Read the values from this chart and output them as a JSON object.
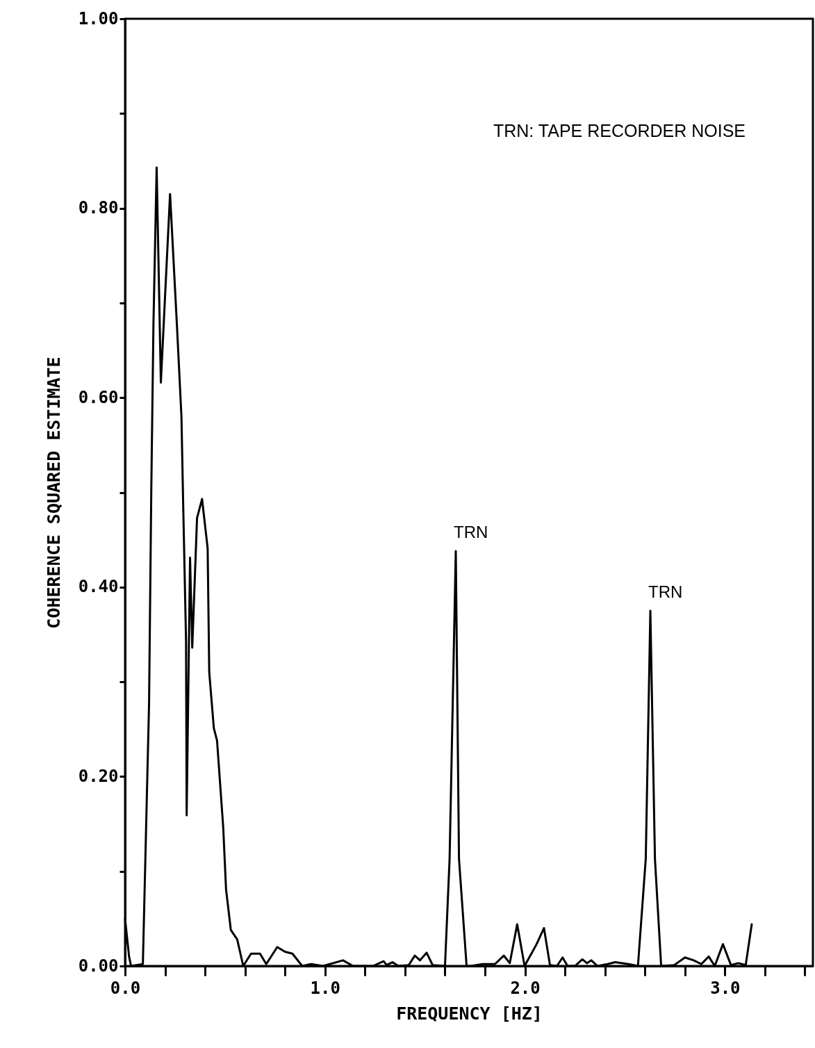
{
  "chart_data": {
    "type": "line",
    "xlabel": "FREQUENCY [HZ]",
    "ylabel": "COHERENCE SQUARED ESTIMATE",
    "annotations": [
      "TRN: TAPE RECORDER NOISE",
      {
        "text": "TRN",
        "x": 1.654,
        "y": 0.438
      },
      {
        "text": "TRN",
        "x": 2.627,
        "y": 0.375
      }
    ],
    "xlim": [
      0,
      3.44
    ],
    "xticks": [
      {
        "value": 0,
        "label": "0.0"
      },
      {
        "value": 0.2,
        "label": null
      },
      {
        "value": 0.4,
        "label": null
      },
      {
        "value": 0.6,
        "label": null
      },
      {
        "value": 0.8,
        "label": null
      },
      {
        "value": 1,
        "label": "1.0"
      },
      {
        "value": 1.2,
        "label": null
      },
      {
        "value": 1.4,
        "label": null
      },
      {
        "value": 1.6,
        "label": null
      },
      {
        "value": 1.8,
        "label": null
      },
      {
        "value": 2,
        "label": "2.0"
      },
      {
        "value": 2.2,
        "label": null
      },
      {
        "value": 2.4,
        "label": null
      },
      {
        "value": 2.6,
        "label": null
      },
      {
        "value": 2.8,
        "label": null
      },
      {
        "value": 3,
        "label": "3.0"
      },
      {
        "value": 3.2,
        "label": null
      },
      {
        "value": 3.4,
        "label": null
      }
    ],
    "ylim": [
      0,
      1
    ],
    "yticks": [
      {
        "value": 0,
        "label": "0.00"
      },
      {
        "value": 0.1,
        "label": null
      },
      {
        "value": 0.2,
        "label": "0.20"
      },
      {
        "value": 0.3,
        "label": null
      },
      {
        "value": 0.4,
        "label": "0.40"
      },
      {
        "value": 0.5,
        "label": null
      },
      {
        "value": 0.6,
        "label": "0.60"
      },
      {
        "value": 0.7,
        "label": null
      },
      {
        "value": 0.8,
        "label": "0.80"
      },
      {
        "value": 0.9,
        "label": null
      },
      {
        "value": 1,
        "label": "1.00"
      }
    ],
    "grid": false,
    "line_style": "solid",
    "marker": "none",
    "series": [
      {
        "color": "#000000",
        "x": [
          0,
          0.02,
          0.03,
          0.089,
          0.12,
          0.131,
          0.142,
          0.158,
          0.179,
          0.225,
          0.259,
          0.282,
          0.29,
          0.305,
          0.308,
          0.325,
          0.336,
          0.36,
          0.385,
          0.413,
          0.421,
          0.444,
          0.46,
          0.491,
          0.505,
          0.529,
          0.561,
          0.591,
          0.63,
          0.675,
          0.706,
          0.761,
          0.8,
          0.837,
          0.886,
          0.93,
          0.99,
          1.09,
          1.14,
          1.24,
          1.293,
          1.308,
          1.337,
          1.367,
          1.419,
          1.449,
          1.475,
          1.508,
          1.538,
          1.6,
          1.623,
          1.654,
          1.67,
          1.708,
          1.73,
          1.789,
          1.85,
          1.894,
          1.924,
          1.961,
          1.998,
          2.058,
          2.095,
          2.125,
          2.16,
          2.188,
          2.213,
          2.25,
          2.287,
          2.31,
          2.332,
          2.362,
          2.414,
          2.451,
          2.517,
          2.565,
          2.604,
          2.627,
          2.65,
          2.681,
          2.747,
          2.8,
          2.844,
          2.882,
          2.919,
          2.949,
          2.99,
          3.03,
          3.067,
          3.104,
          3.134
        ],
        "values": [
          0.05,
          0.01,
          0,
          0.002,
          0.277,
          0.5,
          0.678,
          0.843,
          0.616,
          0.815,
          0.678,
          0.58,
          0.494,
          0.343,
          0.159,
          0.431,
          0.336,
          0.473,
          0.493,
          0.441,
          0.31,
          0.251,
          0.238,
          0.146,
          0.081,
          0.038,
          0.028,
          0,
          0.013,
          0.013,
          0.002,
          0.02,
          0.015,
          0.013,
          0,
          0.002,
          0,
          0.006,
          0,
          0,
          0.005,
          0.001,
          0.004,
          0,
          0.001,
          0.011,
          0.006,
          0.014,
          0.001,
          0,
          0.113,
          0.438,
          0.113,
          0,
          0,
          0.002,
          0.002,
          0.011,
          0.003,
          0.044,
          0,
          0.023,
          0.04,
          0.001,
          0,
          0.009,
          0,
          0,
          0.007,
          0.003,
          0.006,
          0,
          0.002,
          0.004,
          0.002,
          0,
          0.113,
          0.375,
          0.113,
          0,
          0.001,
          0.009,
          0.006,
          0.002,
          0.01,
          0,
          0.023,
          0.001,
          0.003,
          0.001,
          0.044
        ]
      }
    ]
  }
}
